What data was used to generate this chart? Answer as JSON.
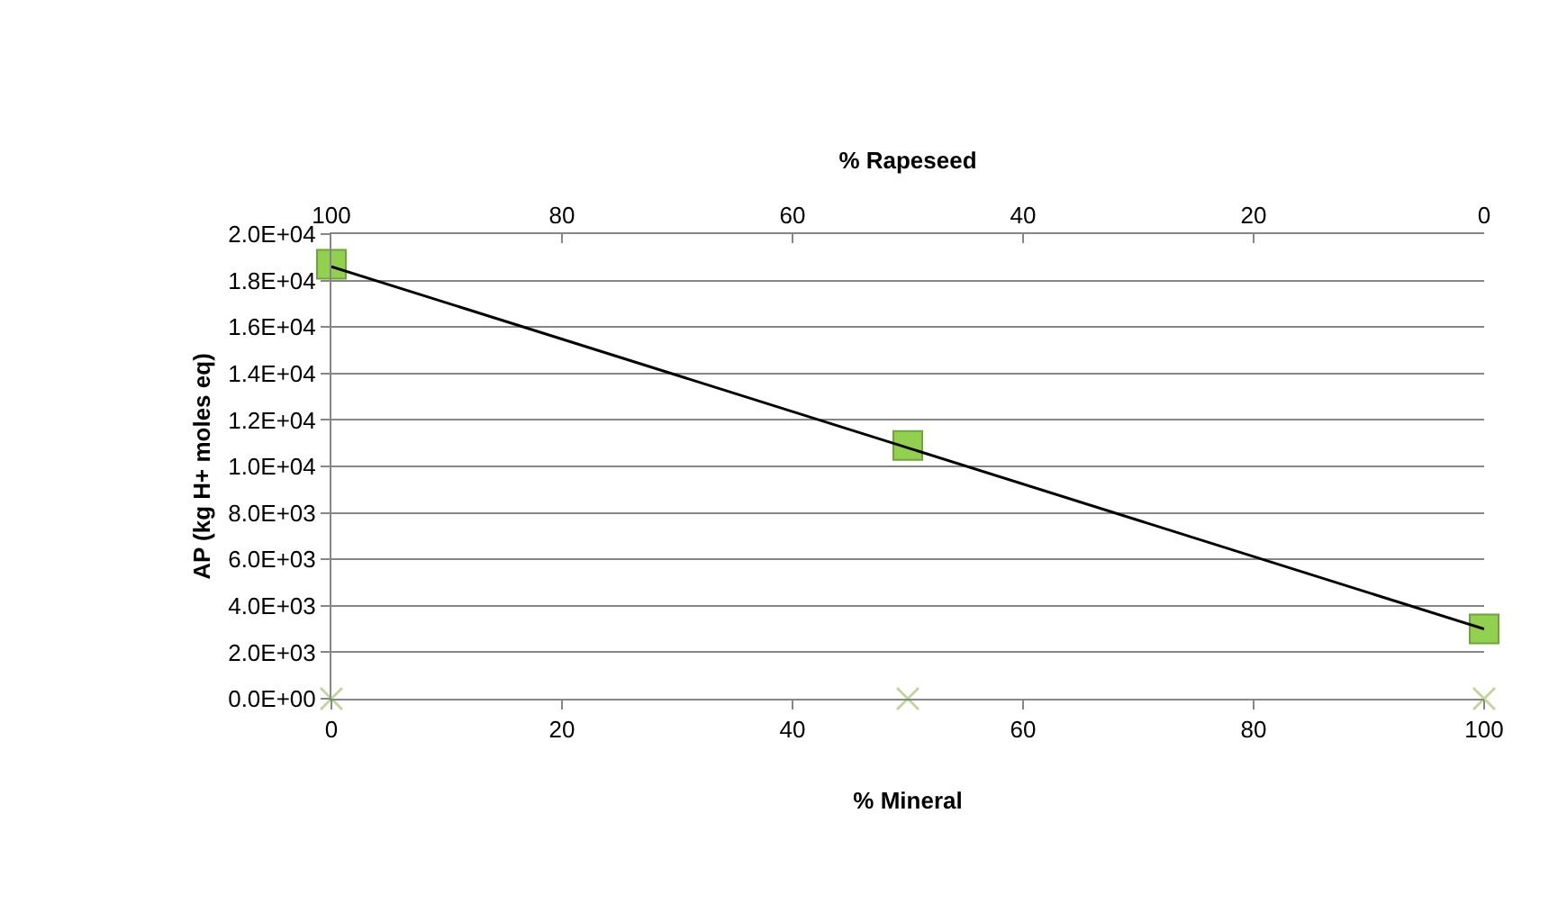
{
  "chart_data": {
    "type": "scatter",
    "xlabel": "% Mineral",
    "x2label": "% Rapeseed",
    "ylabel": "AP (kg H+ moles eq)",
    "xlim": [
      0,
      100
    ],
    "xticks": [
      0,
      20,
      40,
      60,
      80,
      100
    ],
    "x2lim": [
      100,
      0
    ],
    "x2ticks": [
      100,
      80,
      60,
      40,
      20,
      0
    ],
    "ylim": [
      0,
      20000
    ],
    "yticks": [
      {
        "value": 0,
        "label": "0.0E+00"
      },
      {
        "value": 2000,
        "label": "2.0E+03"
      },
      {
        "value": 4000,
        "label": "4.0E+03"
      },
      {
        "value": 6000,
        "label": "6.0E+03"
      },
      {
        "value": 8000,
        "label": "8.0E+03"
      },
      {
        "value": 10000,
        "label": "1.0E+04"
      },
      {
        "value": 12000,
        "label": "1.2E+04"
      },
      {
        "value": 14000,
        "label": "1.4E+04"
      },
      {
        "value": 16000,
        "label": "1.6E+04"
      },
      {
        "value": 18000,
        "label": "1.8E+04"
      },
      {
        "value": 20000,
        "label": "2.0E+04"
      }
    ],
    "grid": "y",
    "series": [
      {
        "marker": "square",
        "color": "#92d050",
        "x": [
          0,
          50,
          100
        ],
        "values": [
          18700,
          10900,
          3000
        ]
      },
      {
        "marker": "cross",
        "color": "#c3d69b",
        "x": [
          0,
          50,
          100
        ],
        "values": [
          0,
          0,
          0
        ]
      },
      {
        "type": "line",
        "marker": "none",
        "line_style": "solid",
        "color": "#000000",
        "x": [
          0,
          100
        ],
        "values": [
          18600,
          3000
        ]
      }
    ]
  }
}
